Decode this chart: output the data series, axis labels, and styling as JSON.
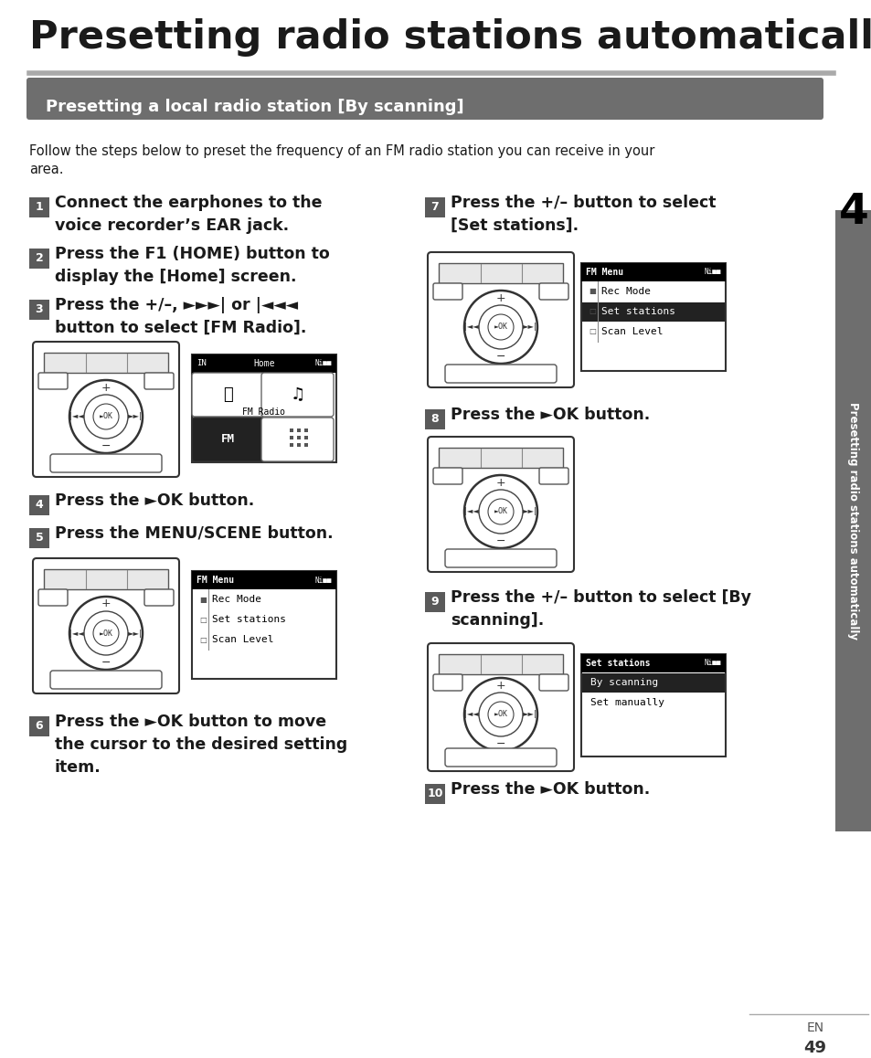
{
  "title": "Presetting radio stations automatically",
  "subtitle_box_text": "Presetting a local radio station [By scanning]",
  "subtitle_box_color": "#6e6e6e",
  "intro_line1": "Follow the steps below to preset the frequency of an FM radio station you can receive in your",
  "intro_line2": "area.",
  "background_color": "#ffffff",
  "title_color": "#1a1a1a",
  "step_box_color": "#5a5a5a",
  "step_text_color": "#1a1a1a",
  "side_tab_color": "#6e6e6e",
  "side_tab_text": "Presetting radio stations automatically",
  "separator_color": "#aaaaaa",
  "page_num": "49",
  "lang": "EN",
  "chapter_num": "4"
}
